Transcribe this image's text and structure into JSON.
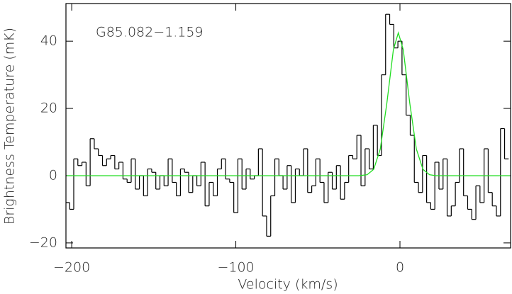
{
  "chart_data": {
    "type": "spectrum",
    "annotation": "G85.082−1.159",
    "xlabel": "Velocity (km/s)",
    "ylabel": "Brightness Temperature (mK)",
    "xlim": [
      -203.5,
      67.4
    ],
    "ylim": [
      -21.5,
      51.2
    ],
    "xticks": [
      {
        "value": -200,
        "label": "−200"
      },
      {
        "value": -100,
        "label": "−100"
      },
      0
    ],
    "yticks": [
      {
        "value": -20,
        "label": "−20"
      },
      0,
      20,
      40
    ],
    "series": [
      {
        "style": "step",
        "color": "#000000",
        "x": [
          -202.5,
          -200,
          -197.5,
          -195,
          -192.5,
          -190,
          -187.5,
          -185,
          -182.5,
          -180,
          -177.5,
          -175,
          -172.5,
          -170,
          -167.5,
          -165,
          -162.5,
          -160,
          -157.5,
          -155,
          -152.5,
          -150,
          -147.5,
          -145,
          -142.5,
          -140,
          -137.5,
          -135,
          -132.5,
          -130,
          -127.5,
          -125,
          -122.5,
          -120,
          -117.5,
          -115,
          -112.5,
          -110,
          -107.5,
          -105,
          -102.5,
          -100,
          -97.5,
          -95,
          -92.5,
          -90,
          -87.5,
          -85,
          -82.5,
          -80,
          -77.5,
          -75,
          -72.5,
          -70,
          -67.5,
          -65,
          -62.5,
          -60,
          -57.5,
          -55,
          -52.5,
          -50,
          -47.5,
          -45,
          -42.5,
          -40,
          -37.5,
          -35,
          -32.5,
          -30,
          -27.5,
          -25,
          -22.5,
          -20,
          -17.5,
          -15,
          -12.5,
          -10,
          -7.5,
          -5,
          -2.5,
          0,
          2.5,
          5,
          7.5,
          10,
          12.5,
          15,
          17.5,
          20,
          22.5,
          25,
          27.5,
          30,
          32.5,
          35,
          37.5,
          40,
          42.5,
          45,
          47.5,
          50,
          52.5,
          55,
          57.5,
          60,
          62.5,
          65
        ],
        "values": [
          -8,
          -10,
          5,
          3,
          4,
          -3,
          11,
          8,
          6,
          3,
          5,
          6,
          2,
          4,
          -1,
          -2,
          5,
          -4,
          0,
          -6,
          2,
          1,
          -4,
          0,
          -3,
          5,
          -2,
          -6,
          2,
          1,
          -5,
          0,
          -3,
          4,
          -9,
          -2,
          -6,
          2,
          5,
          -1,
          -2,
          -11,
          5,
          -4,
          2,
          -1,
          0,
          8,
          -12,
          -18,
          -6,
          5,
          0,
          -4,
          3,
          -8,
          2,
          0,
          8,
          -5,
          -3,
          5,
          -2,
          -8,
          1,
          -4,
          3,
          -7,
          -2,
          6,
          5,
          12,
          -3,
          8,
          2,
          15,
          6,
          30,
          48,
          45,
          38,
          40,
          30,
          18,
          12,
          -2,
          -5,
          6,
          -8,
          -10,
          4,
          -4,
          5,
          -12,
          -9,
          -2,
          8,
          -6,
          -10,
          -13,
          -3,
          -8,
          8,
          -5,
          -9,
          -12,
          14,
          5
        ]
      },
      {
        "style": "line",
        "color": "#22dd22",
        "x": [
          -203,
          -40,
          -30,
          -25,
          -20,
          -16,
          -12,
          -8,
          -4,
          -1,
          2,
          6,
          10,
          14,
          18,
          22,
          30,
          67
        ],
        "values": [
          0,
          0,
          0,
          0,
          0.28,
          1.9,
          7.9,
          21.5,
          37.5,
          42.5,
          37.5,
          21.5,
          7.9,
          1.9,
          0.28,
          0,
          0,
          0
        ]
      }
    ]
  }
}
